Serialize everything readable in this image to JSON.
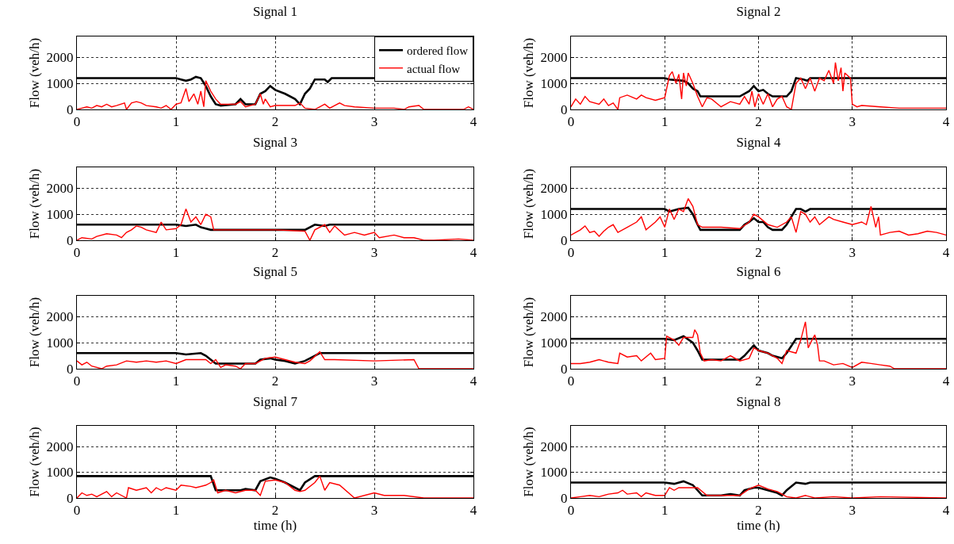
{
  "chart_data": [
    {
      "type": "line",
      "title": "Signal 1",
      "ylabel": "Flow (veh/h)",
      "xlim": [
        0,
        4
      ],
      "xticks": [
        0,
        1,
        2,
        3,
        4
      ],
      "ylim": [
        0,
        2800
      ],
      "yticks": [
        0,
        1000,
        2000
      ],
      "grid": true,
      "legend": "top right",
      "series": [
        {
          "name": "ordered flow",
          "color": "#000000",
          "x": [
            0,
            1.0,
            1.05,
            1.1,
            1.15,
            1.2,
            1.25,
            1.3,
            1.35,
            1.4,
            1.45,
            1.6,
            1.65,
            1.7,
            1.8,
            1.85,
            1.9,
            1.95,
            2.0,
            2.1,
            2.2,
            2.25,
            2.3,
            2.35,
            2.4,
            2.5,
            2.53,
            2.57,
            4
          ],
          "values": [
            1200,
            1200,
            1150,
            1100,
            1150,
            1250,
            1200,
            900,
            500,
            200,
            150,
            200,
            400,
            200,
            200,
            600,
            700,
            900,
            750,
            600,
            400,
            200,
            600,
            800,
            1150,
            1150,
            1050,
            1200,
            1200
          ]
        },
        {
          "name": "actual flow",
          "color": "#ff0000",
          "x": [
            0,
            0.05,
            0.1,
            0.15,
            0.2,
            0.25,
            0.3,
            0.35,
            0.4,
            0.48,
            0.5,
            0.55,
            0.6,
            0.65,
            0.7,
            0.8,
            0.85,
            0.9,
            0.95,
            1.0,
            1.05,
            1.1,
            1.13,
            1.18,
            1.22,
            1.25,
            1.28,
            1.3,
            1.35,
            1.4,
            1.45,
            1.5,
            1.6,
            1.65,
            1.7,
            1.8,
            1.85,
            1.88,
            1.9,
            1.95,
            2.0,
            2.2,
            2.25,
            2.3,
            2.4,
            2.5,
            2.55,
            2.65,
            2.7,
            2.8,
            3.0,
            3.2,
            3.3,
            3.35,
            3.45,
            3.5,
            3.9,
            3.95,
            4.0
          ],
          "values": [
            0,
            50,
            100,
            50,
            150,
            100,
            200,
            100,
            150,
            250,
            0,
            250,
            300,
            250,
            150,
            100,
            50,
            150,
            0,
            200,
            250,
            800,
            300,
            600,
            200,
            700,
            100,
            1100,
            700,
            400,
            200,
            200,
            200,
            300,
            100,
            200,
            600,
            200,
            400,
            100,
            150,
            150,
            250,
            50,
            0,
            200,
            50,
            250,
            150,
            100,
            50,
            50,
            0,
            100,
            150,
            0,
            0,
            100,
            0
          ]
        }
      ]
    },
    {
      "type": "line",
      "title": "Signal 2",
      "ylabel": "Flow (veh/h)",
      "xlim": [
        0,
        4
      ],
      "xticks": [
        0,
        1,
        2,
        3,
        4
      ],
      "ylim": [
        0,
        2800
      ],
      "yticks": [
        0,
        1000,
        2000
      ],
      "grid": true,
      "legend": false,
      "series": [
        {
          "color": "#000000",
          "x": [
            0,
            1.0,
            1.05,
            1.2,
            1.25,
            1.3,
            1.35,
            1.38,
            1.8,
            1.9,
            1.95,
            2.0,
            2.05,
            2.1,
            2.15,
            2.3,
            2.35,
            2.4,
            2.48,
            2.52,
            2.55,
            4
          ],
          "values": [
            1200,
            1200,
            1150,
            1100,
            1000,
            800,
            700,
            500,
            500,
            700,
            900,
            700,
            750,
            600,
            500,
            500,
            700,
            1200,
            1150,
            1100,
            1200,
            1200
          ]
        },
        {
          "color": "#ff0000",
          "x": [
            0,
            0.05,
            0.1,
            0.15,
            0.2,
            0.3,
            0.35,
            0.4,
            0.45,
            0.5,
            0.52,
            0.6,
            0.7,
            0.75,
            0.8,
            0.9,
            1.0,
            1.05,
            1.08,
            1.12,
            1.15,
            1.18,
            1.2,
            1.23,
            1.25,
            1.3,
            1.35,
            1.4,
            1.45,
            1.5,
            1.6,
            1.7,
            1.8,
            1.85,
            1.9,
            1.93,
            1.96,
            2.0,
            2.05,
            2.1,
            2.15,
            2.2,
            2.25,
            2.3,
            2.35,
            2.4,
            2.45,
            2.5,
            2.55,
            2.6,
            2.65,
            2.7,
            2.75,
            2.8,
            2.82,
            2.85,
            2.88,
            2.9,
            2.92,
            2.95,
            2.98,
            3.0,
            3.05,
            3.1,
            3.3,
            3.5,
            4
          ],
          "values": [
            100,
            400,
            200,
            500,
            300,
            200,
            400,
            150,
            250,
            0,
            450,
            550,
            400,
            550,
            450,
            350,
            450,
            1300,
            1450,
            1000,
            1350,
            400,
            1400,
            900,
            1400,
            1000,
            500,
            100,
            450,
            400,
            100,
            300,
            200,
            500,
            200,
            700,
            100,
            600,
            200,
            600,
            100,
            400,
            500,
            100,
            0,
            1000,
            1200,
            800,
            1200,
            700,
            1200,
            1100,
            1500,
            1000,
            1800,
            1100,
            1600,
            700,
            1400,
            1300,
            1200,
            200,
            100,
            150,
            100,
            50,
            50
          ]
        }
      ]
    },
    {
      "type": "line",
      "title": "Signal 3",
      "ylabel": "Flow (veh/h)",
      "xlim": [
        0,
        4
      ],
      "xticks": [
        0,
        1,
        2,
        3,
        4
      ],
      "ylim": [
        0,
        2800
      ],
      "yticks": [
        0,
        1000,
        2000
      ],
      "grid": true,
      "legend": false,
      "series": [
        {
          "color": "#000000",
          "x": [
            0,
            1.0,
            1.1,
            1.2,
            1.25,
            1.35,
            2.3,
            2.4,
            2.5,
            2.55,
            4
          ],
          "values": [
            600,
            600,
            550,
            600,
            500,
            400,
            400,
            600,
            550,
            600,
            600
          ]
        },
        {
          "color": "#ff0000",
          "x": [
            0,
            0.05,
            0.15,
            0.2,
            0.3,
            0.4,
            0.45,
            0.5,
            0.55,
            0.6,
            0.65,
            0.7,
            0.8,
            0.85,
            0.9,
            1.0,
            1.05,
            1.1,
            1.15,
            1.2,
            1.25,
            1.3,
            1.35,
            1.38,
            2.0,
            2.3,
            2.35,
            2.4,
            2.5,
            2.55,
            2.6,
            2.7,
            2.8,
            2.9,
            3.0,
            3.05,
            3.2,
            3.3,
            3.4,
            3.5,
            3.6,
            3.85,
            4
          ],
          "values": [
            0,
            100,
            50,
            150,
            250,
            200,
            100,
            300,
            400,
            550,
            500,
            400,
            300,
            700,
            400,
            450,
            600,
            1200,
            700,
            900,
            600,
            1000,
            900,
            400,
            400,
            350,
            0,
            400,
            600,
            300,
            550,
            200,
            300,
            200,
            300,
            100,
            200,
            100,
            100,
            0,
            0,
            50,
            0
          ]
        }
      ]
    },
    {
      "type": "line",
      "title": "Signal 4",
      "ylabel": "Flow (veh/h)",
      "xlim": [
        0,
        4
      ],
      "xticks": [
        0,
        1,
        2,
        3,
        4
      ],
      "ylim": [
        0,
        2800
      ],
      "yticks": [
        0,
        1000,
        2000
      ],
      "grid": true,
      "legend": false,
      "series": [
        {
          "color": "#000000",
          "x": [
            0,
            1.0,
            1.05,
            1.15,
            1.25,
            1.3,
            1.35,
            1.38,
            1.8,
            1.85,
            1.9,
            1.95,
            2.0,
            2.05,
            2.1,
            2.15,
            2.25,
            2.3,
            2.4,
            2.45,
            2.5,
            2.55,
            4
          ],
          "values": [
            1200,
            1200,
            1100,
            1200,
            1250,
            1000,
            600,
            400,
            400,
            600,
            700,
            850,
            700,
            700,
            500,
            400,
            400,
            600,
            1200,
            1200,
            1100,
            1200,
            1200
          ]
        },
        {
          "color": "#ff0000",
          "x": [
            0,
            0.05,
            0.1,
            0.15,
            0.2,
            0.25,
            0.3,
            0.35,
            0.4,
            0.45,
            0.5,
            0.6,
            0.7,
            0.75,
            0.8,
            0.9,
            0.95,
            1.0,
            1.05,
            1.1,
            1.15,
            1.2,
            1.25,
            1.3,
            1.35,
            1.4,
            1.6,
            1.8,
            1.9,
            1.95,
            2.0,
            2.1,
            2.2,
            2.3,
            2.35,
            2.4,
            2.45,
            2.5,
            2.55,
            2.6,
            2.65,
            2.75,
            2.8,
            2.9,
            3.0,
            3.1,
            3.15,
            3.2,
            3.25,
            3.28,
            3.3,
            3.4,
            3.5,
            3.6,
            3.7,
            3.8,
            3.9,
            4
          ],
          "values": [
            200,
            300,
            400,
            550,
            300,
            350,
            150,
            350,
            500,
            600,
            300,
            500,
            700,
            900,
            400,
            700,
            900,
            500,
            1200,
            800,
            1200,
            1100,
            1600,
            1300,
            600,
            500,
            500,
            450,
            700,
            1000,
            900,
            600,
            500,
            700,
            900,
            300,
            1100,
            1000,
            700,
            900,
            600,
            900,
            800,
            700,
            600,
            700,
            600,
            1300,
            500,
            900,
            200,
            300,
            350,
            200,
            250,
            350,
            300,
            200
          ]
        }
      ]
    },
    {
      "type": "line",
      "title": "Signal 5",
      "ylabel": "Flow (veh/h)",
      "xlim": [
        0,
        4
      ],
      "xticks": [
        0,
        1,
        2,
        3,
        4
      ],
      "ylim": [
        0,
        2800
      ],
      "yticks": [
        0,
        1000,
        2000
      ],
      "grid": true,
      "legend": false,
      "series": [
        {
          "color": "#000000",
          "x": [
            0,
            1.0,
            1.1,
            1.25,
            1.3,
            1.4,
            1.6,
            1.8,
            1.85,
            1.95,
            2.0,
            2.1,
            2.2,
            2.3,
            2.4,
            2.45,
            2.55,
            4
          ],
          "values": [
            600,
            600,
            550,
            600,
            500,
            200,
            200,
            200,
            350,
            400,
            350,
            300,
            200,
            300,
            500,
            600,
            600,
            600
          ]
        },
        {
          "color": "#ff0000",
          "x": [
            0,
            0.05,
            0.1,
            0.15,
            0.25,
            0.3,
            0.4,
            0.5,
            0.6,
            0.7,
            0.8,
            0.9,
            1.0,
            1.1,
            1.3,
            1.35,
            1.4,
            1.45,
            1.5,
            1.6,
            1.65,
            1.7,
            1.8,
            1.9,
            2.0,
            2.1,
            2.2,
            2.3,
            2.35,
            2.45,
            2.5,
            2.6,
            3.0,
            3.4,
            3.45,
            4
          ],
          "values": [
            300,
            150,
            250,
            100,
            0,
            100,
            150,
            300,
            250,
            300,
            250,
            300,
            200,
            350,
            350,
            200,
            350,
            50,
            150,
            100,
            0,
            200,
            200,
            400,
            450,
            350,
            250,
            200,
            300,
            650,
            350,
            350,
            300,
            350,
            0,
            0
          ]
        }
      ]
    },
    {
      "type": "line",
      "title": "Signal 6",
      "ylabel": "Flow (veh/h)",
      "xlim": [
        0,
        4
      ],
      "xticks": [
        0,
        1,
        2,
        3,
        4
      ],
      "ylim": [
        0,
        2800
      ],
      "yticks": [
        0,
        1000,
        2000
      ],
      "grid": true,
      "legend": false,
      "series": [
        {
          "color": "#000000",
          "x": [
            0,
            1.0,
            1.1,
            1.2,
            1.3,
            1.35,
            1.4,
            1.8,
            1.85,
            1.9,
            1.95,
            2.0,
            2.1,
            2.15,
            2.25,
            2.3,
            2.4,
            2.55,
            4
          ],
          "values": [
            1150,
            1150,
            1100,
            1250,
            1000,
            700,
            350,
            350,
            500,
            700,
            900,
            700,
            600,
            500,
            400,
            600,
            1150,
            1150,
            1150
          ]
        },
        {
          "color": "#ff0000",
          "x": [
            0,
            0.1,
            0.2,
            0.3,
            0.4,
            0.5,
            0.52,
            0.6,
            0.7,
            0.75,
            0.85,
            0.9,
            1.0,
            1.02,
            1.1,
            1.15,
            1.2,
            1.3,
            1.32,
            1.35,
            1.38,
            1.42,
            1.5,
            1.6,
            1.7,
            1.8,
            1.9,
            1.95,
            2.0,
            2.1,
            2.2,
            2.25,
            2.3,
            2.4,
            2.45,
            2.5,
            2.53,
            2.57,
            2.6,
            2.63,
            2.65,
            2.7,
            2.8,
            2.9,
            3.0,
            3.1,
            3.2,
            3.3,
            3.4,
            3.45,
            4
          ],
          "values": [
            200,
            200,
            250,
            350,
            250,
            200,
            600,
            450,
            500,
            300,
            600,
            350,
            400,
            1250,
            1100,
            900,
            1200,
            1200,
            1500,
            1300,
            600,
            300,
            350,
            300,
            500,
            300,
            400,
            800,
            700,
            600,
            400,
            200,
            700,
            600,
            1100,
            1800,
            800,
            1100,
            1300,
            900,
            300,
            300,
            150,
            200,
            50,
            250,
            200,
            150,
            100,
            0,
            0
          ]
        }
      ]
    },
    {
      "type": "line",
      "title": "Signal 7",
      "xlabel": "time (h)",
      "ylabel": "Flow (veh/h)",
      "xlim": [
        0,
        4
      ],
      "xticks": [
        0,
        1,
        2,
        3,
        4
      ],
      "ylim": [
        0,
        2800
      ],
      "yticks": [
        0,
        1000,
        2000
      ],
      "grid": true,
      "legend": false,
      "series": [
        {
          "color": "#000000",
          "x": [
            0,
            1.35,
            1.4,
            1.65,
            1.7,
            1.8,
            1.85,
            1.95,
            2.0,
            2.1,
            2.2,
            2.25,
            2.3,
            2.4,
            4
          ],
          "values": [
            850,
            850,
            300,
            300,
            350,
            300,
            650,
            800,
            750,
            600,
            400,
            300,
            600,
            850,
            850
          ]
        },
        {
          "color": "#ff0000",
          "x": [
            0,
            0.05,
            0.1,
            0.15,
            0.2,
            0.3,
            0.35,
            0.4,
            0.5,
            0.52,
            0.6,
            0.7,
            0.75,
            0.8,
            0.85,
            0.9,
            1.0,
            1.05,
            1.15,
            1.2,
            1.3,
            1.35,
            1.38,
            1.42,
            1.5,
            1.6,
            1.7,
            1.8,
            1.85,
            1.9,
            2.0,
            2.1,
            2.2,
            2.25,
            2.3,
            2.4,
            2.45,
            2.5,
            2.55,
            2.65,
            2.8,
            3.0,
            3.1,
            3.3,
            3.5,
            4
          ],
          "values": [
            0,
            200,
            100,
            150,
            50,
            250,
            50,
            200,
            0,
            400,
            300,
            400,
            200,
            400,
            300,
            400,
            300,
            500,
            450,
            400,
            500,
            600,
            700,
            200,
            300,
            200,
            300,
            300,
            100,
            650,
            700,
            600,
            300,
            250,
            300,
            600,
            850,
            300,
            600,
            500,
            0,
            200,
            100,
            100,
            0,
            0
          ]
        }
      ]
    },
    {
      "type": "line",
      "title": "Signal 8",
      "xlabel": "time (h)",
      "ylabel": "Flow (veh/h)",
      "xlim": [
        0,
        4
      ],
      "xticks": [
        0,
        1,
        2,
        3,
        4
      ],
      "ylim": [
        0,
        2800
      ],
      "yticks": [
        0,
        1000,
        2000
      ],
      "grid": true,
      "legend": false,
      "series": [
        {
          "color": "#000000",
          "x": [
            0,
            1.0,
            1.1,
            1.2,
            1.3,
            1.4,
            1.6,
            1.7,
            1.8,
            1.85,
            1.95,
            2.0,
            2.1,
            2.2,
            2.25,
            2.3,
            2.4,
            2.5,
            2.55,
            4
          ],
          "values": [
            600,
            600,
            550,
            650,
            500,
            100,
            100,
            150,
            100,
            300,
            400,
            400,
            300,
            200,
            100,
            300,
            600,
            550,
            600,
            600
          ]
        },
        {
          "color": "#ff0000",
          "x": [
            0,
            0.1,
            0.2,
            0.3,
            0.4,
            0.5,
            0.55,
            0.6,
            0.7,
            0.75,
            0.8,
            0.9,
            1.0,
            1.05,
            1.1,
            1.15,
            1.35,
            1.45,
            1.7,
            1.8,
            1.9,
            2.0,
            2.1,
            2.2,
            2.3,
            2.4,
            2.5,
            2.6,
            2.8,
            3.0,
            3.3,
            4
          ],
          "values": [
            0,
            50,
            100,
            50,
            150,
            200,
            300,
            150,
            200,
            50,
            200,
            100,
            100,
            400,
            300,
            400,
            400,
            100,
            100,
            100,
            350,
            500,
            350,
            250,
            50,
            0,
            100,
            0,
            50,
            0,
            50,
            0
          ]
        }
      ]
    }
  ]
}
